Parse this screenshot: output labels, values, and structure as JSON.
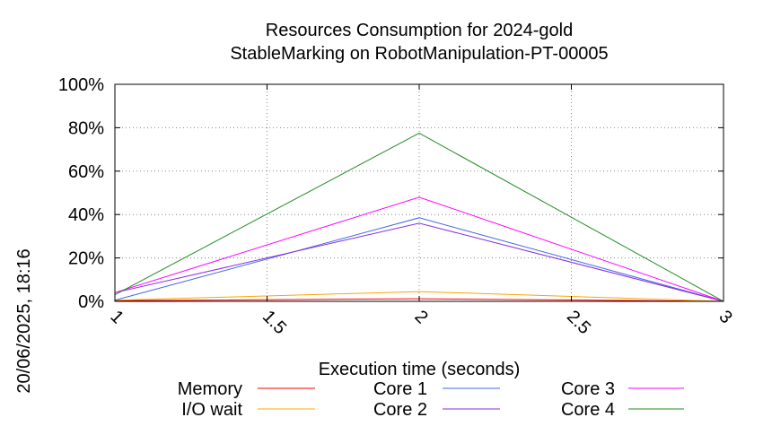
{
  "chart_data": {
    "type": "line",
    "title": "Resources Consumption for 2024-gold",
    "subtitle": "StableMarking on RobotManipulation-PT-00005",
    "xlabel": "Execution time (seconds)",
    "ylabel": "",
    "side_label": "20/06/2025, 18:16",
    "xlim": [
      1,
      3
    ],
    "ylim": [
      0,
      100
    ],
    "x_ticks": [
      1,
      1.5,
      2,
      2.5,
      3
    ],
    "x_tick_labels": [
      "1",
      "1.5",
      "2",
      "2.5",
      "3"
    ],
    "y_ticks": [
      0,
      20,
      40,
      60,
      80,
      100
    ],
    "y_tick_labels": [
      "0%",
      "20%",
      "40%",
      "60%",
      "80%",
      "100%"
    ],
    "grid": true,
    "legend_position": "bottom",
    "x": [
      1,
      2,
      3
    ],
    "series": [
      {
        "name": "Memory",
        "color": "#ff0000",
        "values": [
          0.3,
          1.2,
          0.0
        ]
      },
      {
        "name": "I/O wait",
        "color": "#ffa500",
        "values": [
          0.5,
          4.5,
          0.0
        ]
      },
      {
        "name": "Core 1",
        "color": "#4169e1",
        "values": [
          0.5,
          38.5,
          0.0
        ]
      },
      {
        "name": "Core 2",
        "color": "#8a2be2",
        "values": [
          4.0,
          36.0,
          0.0
        ]
      },
      {
        "name": "Core 3",
        "color": "#ff00ff",
        "values": [
          4.0,
          48.0,
          0.0
        ]
      },
      {
        "name": "Core 4",
        "color": "#228b22",
        "values": [
          3.0,
          77.5,
          0.0
        ]
      }
    ]
  }
}
